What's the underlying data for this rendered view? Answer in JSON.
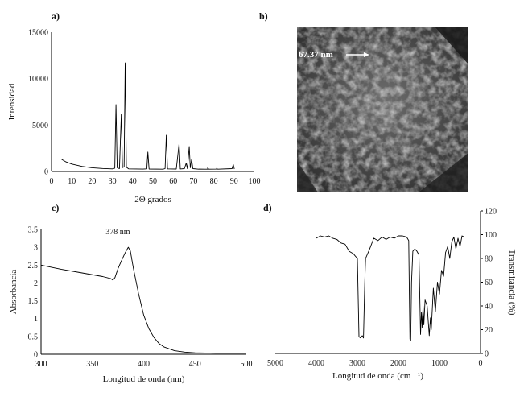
{
  "panel_labels": {
    "a": "a)",
    "b": "b)",
    "c": "c)",
    "d": "d)"
  },
  "sem_image": {
    "annotation": "67.37 nm",
    "colors": {
      "background": "#545454",
      "particles": "#c8c8c8",
      "text": "#ffffff"
    }
  },
  "chart_data": [
    {
      "id": "a",
      "type": "line",
      "title": "",
      "xlabel": "2Θ grados",
      "ylabel": "Intensidad",
      "xlim": [
        0,
        100
      ],
      "ylim": [
        0,
        15000
      ],
      "x_ticks": [
        0,
        10,
        20,
        30,
        40,
        50,
        60,
        70,
        80,
        90,
        100
      ],
      "y_ticks": [
        0,
        5000,
        10000,
        15000
      ],
      "grid": false,
      "color": "#000000",
      "series": [
        {
          "values": [
            [
              5,
              1300
            ],
            [
              7,
              1050
            ],
            [
              10,
              800
            ],
            [
              15,
              550
            ],
            [
              20,
              400
            ],
            [
              25,
              320
            ],
            [
              30,
              280
            ],
            [
              31.2,
              350
            ],
            [
              31.8,
              7200
            ],
            [
              32.4,
              400
            ],
            [
              33.5,
              300
            ],
            [
              34.4,
              6200
            ],
            [
              35.0,
              420
            ],
            [
              35.8,
              500
            ],
            [
              36.3,
              11700
            ],
            [
              36.9,
              450
            ],
            [
              38,
              280
            ],
            [
              45,
              250
            ],
            [
              47.0,
              280
            ],
            [
              47.5,
              2100
            ],
            [
              48.1,
              260
            ],
            [
              55,
              240
            ],
            [
              56.0,
              300
            ],
            [
              56.6,
              3900
            ],
            [
              57.2,
              280
            ],
            [
              61.5,
              260
            ],
            [
              62.9,
              3000
            ],
            [
              63.5,
              270
            ],
            [
              65.5,
              300
            ],
            [
              66.4,
              900
            ],
            [
              67.0,
              300
            ],
            [
              67.9,
              2700
            ],
            [
              68.4,
              400
            ],
            [
              69.1,
              1300
            ],
            [
              69.7,
              300
            ],
            [
              72.5,
              240
            ],
            [
              72.6,
              250
            ],
            [
              77.0,
              240
            ],
            [
              77.0,
              400
            ],
            [
              77.5,
              240
            ],
            [
              81.4,
              250
            ],
            [
              81.4,
              330
            ],
            [
              82,
              240
            ],
            [
              89.0,
              300
            ],
            [
              89.6,
              750
            ],
            [
              90.1,
              260
            ]
          ]
        }
      ]
    },
    {
      "id": "c",
      "type": "line",
      "title": "",
      "xlabel": "Longitud de onda (nm)",
      "ylabel": "Absorbancia",
      "xlim": [
        300,
        500
      ],
      "ylim": [
        0,
        3.5
      ],
      "x_ticks": [
        300,
        350,
        400,
        450,
        500
      ],
      "y_ticks": [
        0,
        0.5,
        1,
        1.5,
        2,
        2.5,
        3,
        3.5
      ],
      "grid": false,
      "color": "#000000",
      "annotations": [
        {
          "text": "378 nm",
          "x": 378,
          "y": 3.0
        }
      ],
      "series": [
        {
          "values": [
            [
              300,
              2.5
            ],
            [
              320,
              2.38
            ],
            [
              340,
              2.28
            ],
            [
              360,
              2.18
            ],
            [
              368,
              2.12
            ],
            [
              370,
              2.08
            ],
            [
              372,
              2.15
            ],
            [
              375,
              2.4
            ],
            [
              378,
              2.6
            ],
            [
              382,
              2.85
            ],
            [
              385,
              3.0
            ],
            [
              387,
              2.9
            ],
            [
              390,
              2.4
            ],
            [
              395,
              1.7
            ],
            [
              400,
              1.1
            ],
            [
              405,
              0.72
            ],
            [
              410,
              0.47
            ],
            [
              415,
              0.3
            ],
            [
              420,
              0.2
            ],
            [
              430,
              0.1
            ],
            [
              440,
              0.06
            ],
            [
              450,
              0.04
            ],
            [
              470,
              0.03
            ],
            [
              500,
              0.03
            ]
          ]
        }
      ]
    },
    {
      "id": "d",
      "type": "line",
      "title": "",
      "xlabel": "Longitud de onda (cm ⁻¹)",
      "ylabel": "Transmitancia (%)",
      "xlim": [
        5000,
        0
      ],
      "ylim": [
        0,
        120
      ],
      "x_ticks": [
        5000,
        4000,
        3000,
        2000,
        1000,
        0
      ],
      "y_ticks": [
        0,
        20,
        40,
        60,
        80,
        100,
        120
      ],
      "x_reversed": true,
      "y_axis_side": "right",
      "grid": false,
      "color": "#000000",
      "series": [
        {
          "values": [
            [
              4000,
              97
            ],
            [
              3900,
              99
            ],
            [
              3800,
              98
            ],
            [
              3700,
              99
            ],
            [
              3600,
              97
            ],
            [
              3500,
              96
            ],
            [
              3400,
              93
            ],
            [
              3300,
              92
            ],
            [
              3200,
              86
            ],
            [
              3100,
              84
            ],
            [
              3050,
              82
            ],
            [
              3000,
              80
            ],
            [
              2960,
              14
            ],
            [
              2920,
              13
            ],
            [
              2880,
              15
            ],
            [
              2850,
              13
            ],
            [
              2820,
              60
            ],
            [
              2800,
              80
            ],
            [
              2750,
              84
            ],
            [
              2700,
              88
            ],
            [
              2600,
              97
            ],
            [
              2500,
              95
            ],
            [
              2400,
              98
            ],
            [
              2300,
              96
            ],
            [
              2200,
              98
            ],
            [
              2100,
              97
            ],
            [
              2000,
              99
            ],
            [
              1900,
              99
            ],
            [
              1800,
              98
            ],
            [
              1750,
              95
            ],
            [
              1720,
              12
            ],
            [
              1700,
              11
            ],
            [
              1680,
              60
            ],
            [
              1650,
              86
            ],
            [
              1600,
              88
            ],
            [
              1550,
              86
            ],
            [
              1500,
              83
            ],
            [
              1460,
              16
            ],
            [
              1440,
              35
            ],
            [
              1420,
              22
            ],
            [
              1400,
              40
            ],
            [
              1380,
              24
            ],
            [
              1350,
              45
            ],
            [
              1300,
              40
            ],
            [
              1250,
              15
            ],
            [
              1220,
              30
            ],
            [
              1200,
              20
            ],
            [
              1150,
              55
            ],
            [
              1100,
              35
            ],
            [
              1050,
              60
            ],
            [
              1000,
              50
            ],
            [
              950,
              70
            ],
            [
              900,
              65
            ],
            [
              850,
              85
            ],
            [
              800,
              90
            ],
            [
              750,
              80
            ],
            [
              700,
              94
            ],
            [
              650,
              98
            ],
            [
              600,
              88
            ],
            [
              550,
              97
            ],
            [
              500,
              90
            ],
            [
              450,
              99
            ],
            [
              400,
              98
            ]
          ]
        }
      ]
    }
  ]
}
